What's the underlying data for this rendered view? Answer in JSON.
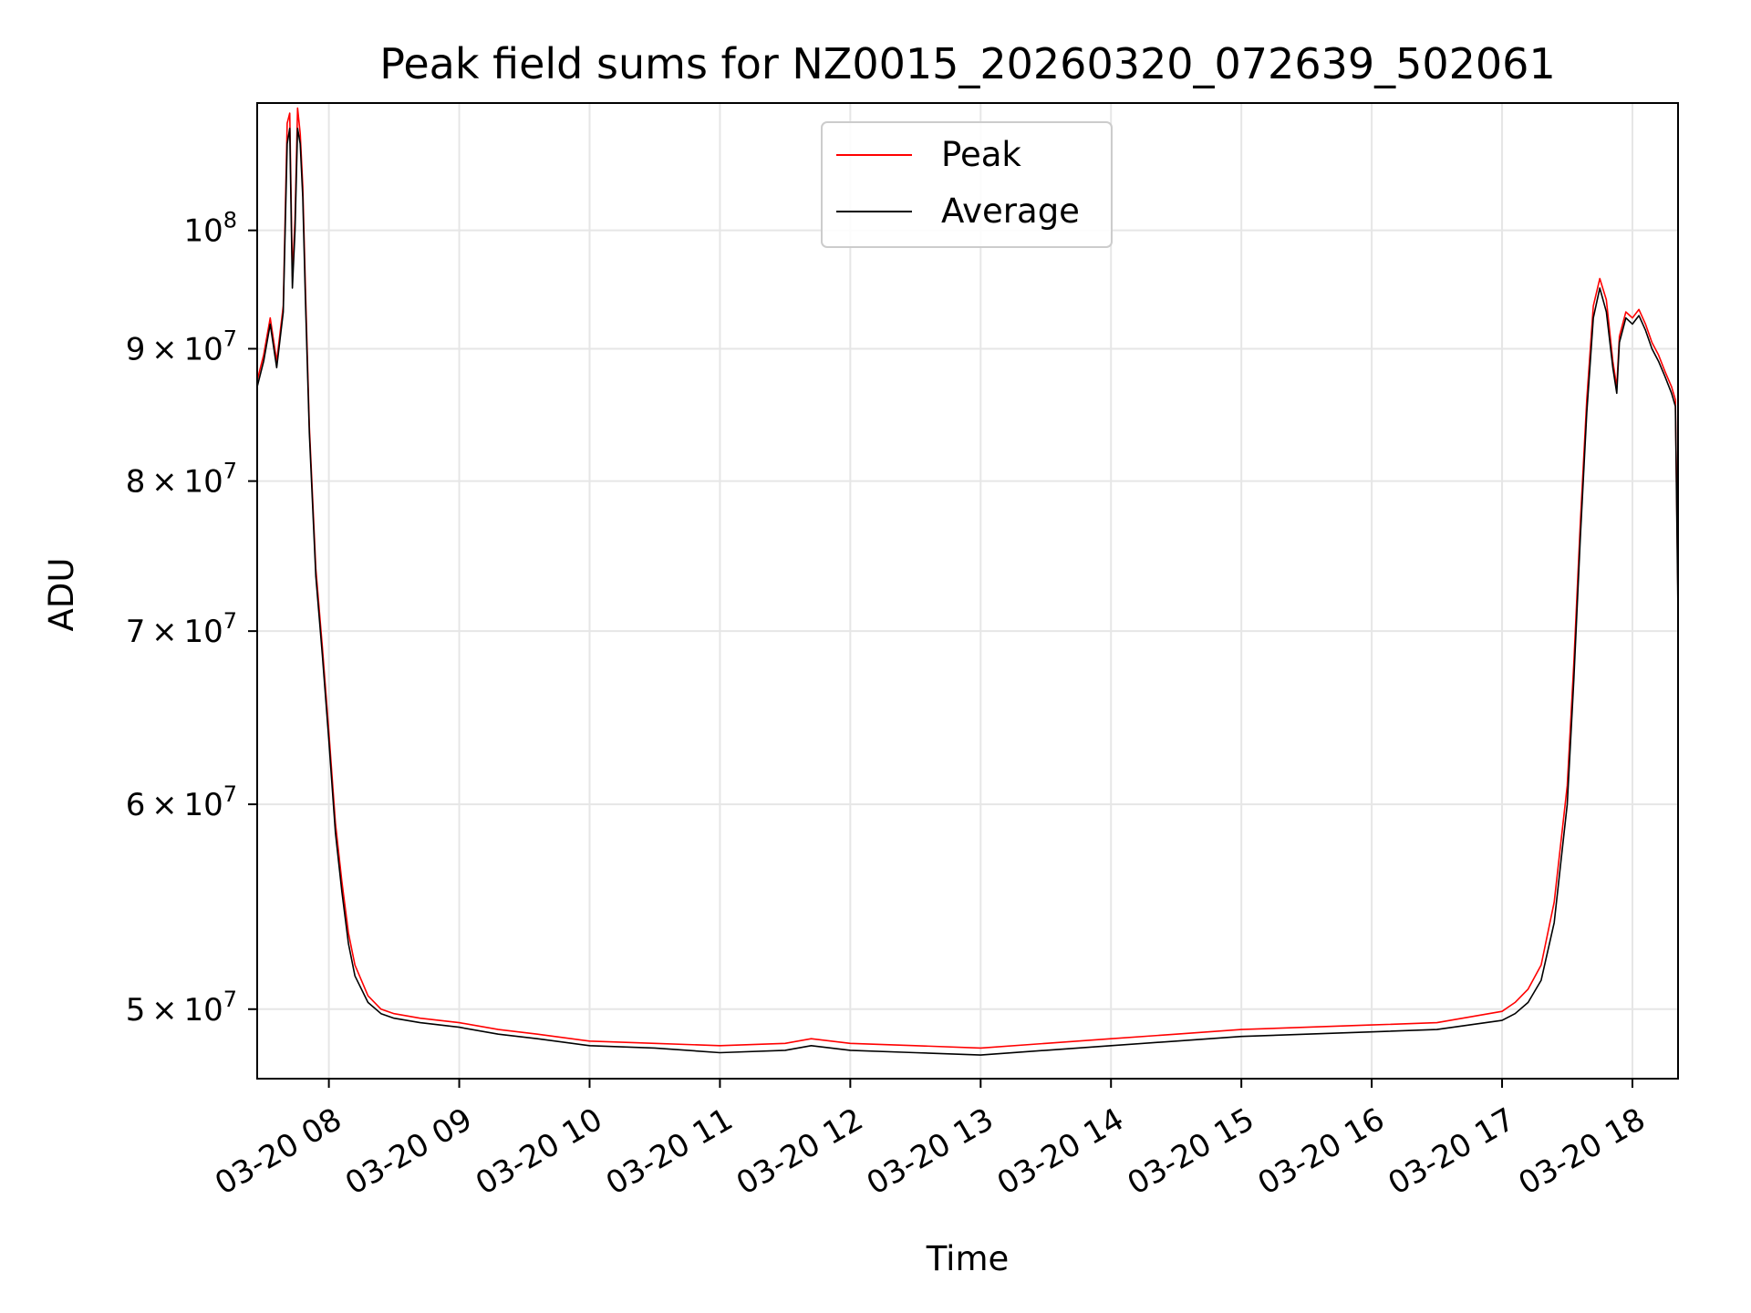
{
  "chart_data": {
    "type": "line",
    "title": "Peak field sums for NZ0015_20260320_072639_502061",
    "xlabel": "Time",
    "ylabel": "ADU",
    "yscale": "log",
    "grid": true,
    "legend_position": "top-center",
    "xlim": [
      7.45,
      18.35
    ],
    "ylim": [
      47000000,
      112000000
    ],
    "x_ticks": [
      {
        "value": 8,
        "label": "03-20 08"
      },
      {
        "value": 9,
        "label": "03-20 09"
      },
      {
        "value": 10,
        "label": "03-20 10"
      },
      {
        "value": 11,
        "label": "03-20 11"
      },
      {
        "value": 12,
        "label": "03-20 12"
      },
      {
        "value": 13,
        "label": "03-20 13"
      },
      {
        "value": 14,
        "label": "03-20 14"
      },
      {
        "value": 15,
        "label": "03-20 15"
      },
      {
        "value": 16,
        "label": "03-20 16"
      },
      {
        "value": 17,
        "label": "03-20 17"
      },
      {
        "value": 18,
        "label": "03-20 18"
      }
    ],
    "y_ticks": [
      {
        "value": 50000000,
        "mantissa": "5",
        "exponent": "7"
      },
      {
        "value": 60000000,
        "mantissa": "6",
        "exponent": "7"
      },
      {
        "value": 70000000,
        "mantissa": "7",
        "exponent": "7"
      },
      {
        "value": 80000000,
        "mantissa": "8",
        "exponent": "7"
      },
      {
        "value": 90000000,
        "mantissa": "9",
        "exponent": "7"
      },
      {
        "value": 100000000,
        "mantissa": "",
        "exponent": "8"
      }
    ],
    "tick_times": "×",
    "tick_base": "10",
    "series": [
      {
        "name": "Peak",
        "color": "#ff0000",
        "x": [
          7.45,
          7.5,
          7.55,
          7.6,
          7.65,
          7.68,
          7.7,
          7.72,
          7.74,
          7.76,
          7.78,
          7.8,
          7.82,
          7.85,
          7.9,
          7.95,
          8.0,
          8.05,
          8.1,
          8.15,
          8.2,
          8.3,
          8.4,
          8.5,
          8.7,
          9.0,
          9.3,
          9.6,
          10.0,
          10.5,
          11.0,
          11.5,
          11.7,
          12.0,
          12.5,
          13.0,
          13.5,
          14.0,
          14.5,
          15.0,
          15.5,
          16.0,
          16.5,
          17.0,
          17.1,
          17.2,
          17.3,
          17.4,
          17.5,
          17.55,
          17.6,
          17.65,
          17.7,
          17.75,
          17.8,
          17.85,
          17.88,
          17.9,
          17.95,
          18.0,
          18.05,
          18.1,
          18.15,
          18.2,
          18.25,
          18.3,
          18.33,
          18.35
        ],
        "y": [
          87500000,
          89500000,
          92500000,
          89000000,
          93500000,
          110000000,
          111000000,
          96000000,
          101000000,
          111500000,
          109000000,
          104000000,
          95000000,
          84000000,
          74000000,
          69000000,
          64000000,
          59000000,
          56000000,
          53500000,
          52000000,
          50600000,
          50000000,
          49800000,
          49600000,
          49400000,
          49100000,
          48900000,
          48600000,
          48500000,
          48400000,
          48500000,
          48700000,
          48500000,
          48400000,
          48300000,
          48500000,
          48700000,
          48900000,
          49100000,
          49200000,
          49300000,
          49400000,
          49900000,
          50300000,
          50900000,
          52000000,
          55000000,
          61000000,
          68000000,
          77000000,
          86000000,
          93500000,
          95800000,
          94000000,
          89000000,
          87000000,
          91000000,
          93000000,
          92500000,
          93200000,
          92000000,
          90500000,
          89500000,
          88200000,
          87000000,
          86000000,
          72000000
        ]
      },
      {
        "name": "Average",
        "color": "#000000",
        "x": [
          7.45,
          7.5,
          7.55,
          7.6,
          7.65,
          7.68,
          7.7,
          7.72,
          7.74,
          7.76,
          7.78,
          7.8,
          7.82,
          7.85,
          7.9,
          7.95,
          8.0,
          8.05,
          8.1,
          8.15,
          8.2,
          8.3,
          8.4,
          8.5,
          8.7,
          9.0,
          9.3,
          9.6,
          10.0,
          10.5,
          11.0,
          11.5,
          11.7,
          12.0,
          12.5,
          13.0,
          13.5,
          14.0,
          14.5,
          15.0,
          15.5,
          16.0,
          16.5,
          17.0,
          17.1,
          17.2,
          17.3,
          17.4,
          17.5,
          17.55,
          17.6,
          17.65,
          17.7,
          17.75,
          17.8,
          17.85,
          17.88,
          17.9,
          17.95,
          18.0,
          18.05,
          18.1,
          18.15,
          18.2,
          18.25,
          18.3,
          18.33,
          18.35
        ],
        "y": [
          87000000,
          89000000,
          92000000,
          88500000,
          93000000,
          108000000,
          109500000,
          95000000,
          100000000,
          109500000,
          108000000,
          103000000,
          94000000,
          83500000,
          73500000,
          68500000,
          63500000,
          58500000,
          55500000,
          53000000,
          51500000,
          50300000,
          49800000,
          49600000,
          49400000,
          49200000,
          48900000,
          48700000,
          48400000,
          48300000,
          48100000,
          48200000,
          48400000,
          48200000,
          48100000,
          48000000,
          48200000,
          48400000,
          48600000,
          48800000,
          48900000,
          49000000,
          49100000,
          49500000,
          49800000,
          50300000,
          51300000,
          54000000,
          60000000,
          67000000,
          76000000,
          85000000,
          92500000,
          95000000,
          93000000,
          88500000,
          86500000,
          90500000,
          92500000,
          92000000,
          92700000,
          91500000,
          90000000,
          89000000,
          87800000,
          86500000,
          85500000,
          71000000
        ]
      }
    ]
  }
}
